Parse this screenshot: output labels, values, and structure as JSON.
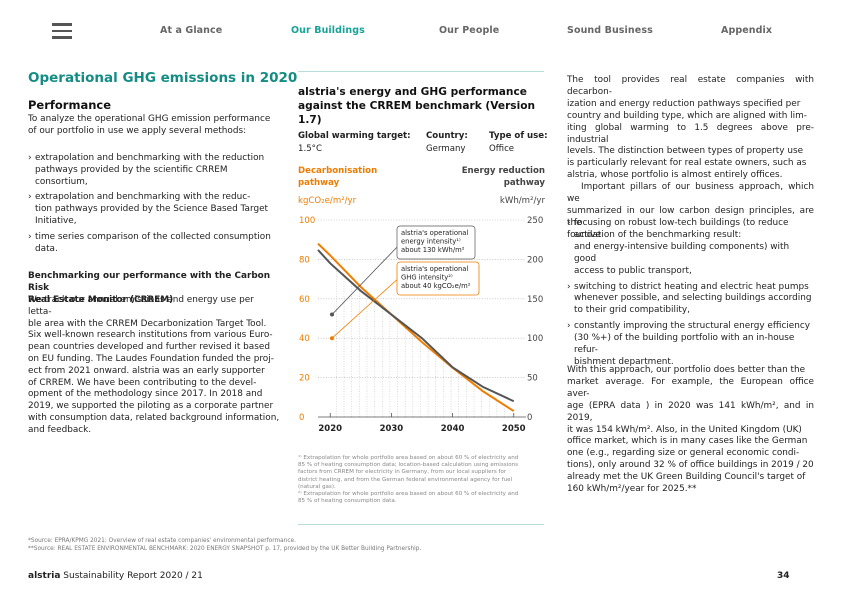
{
  "nav": {
    "items": [
      "At a Glance",
      "Our Buildings",
      "Our People",
      "Sound Business",
      "Appendix"
    ],
    "active": "Our Buildings"
  },
  "left": {
    "title": "Operational GHG emissions in 2020",
    "performance_heading": "Performance",
    "intro_lines": [
      "To analyze the operational GHG emission performance",
      "of our portfolio in use we apply several methods:"
    ],
    "bullets": [
      [
        "extrapolation and benchmarking with the reduction",
        "pathways provided by the scientific CRREM consortium,"
      ],
      [
        "extrapolation and benchmarking with the reduc-",
        "tion pathways provided by the Science Based Target",
        "Initiative,"
      ],
      [
        "time series comparison of the collected consumption",
        "data."
      ]
    ],
    "crrem_heading_lines": [
      "Benchmarking our performance with the Carbon Risk",
      "Real Estate Monitor (CRREM)"
    ],
    "crrem_lines": [
      "We track our annual emissions and energy use per letta-",
      "ble area with the CRREM Decarbonization Target Tool.",
      "Six well-known research institutions from various Euro-",
      "pean countries developed and further revised it based",
      "on EU funding. The Laudes Foundation funded the proj-",
      "ect from 2021 onward. alstria was an early supporter",
      "of CRREM. We have been contributing to the devel-",
      "opment of the methodology since 2017. In 2018 and",
      "2019, we supported the piloting as a corporate partner",
      "with consumption data, related background information,",
      "and feedback."
    ]
  },
  "chart": {
    "title_lines": [
      "alstria's energy and GHG performance",
      "against the CRREM benchmark (Version 1.7)"
    ],
    "gw_label": "Global warming target:",
    "gw_value": "1.5°C",
    "country_label": "Country:",
    "country_value": "Germany",
    "type_label": "Type of use:",
    "type_value": "Office",
    "left_axis_title_lines": [
      "Decarbonisation",
      "pathway"
    ],
    "right_axis_title_lines": [
      "Energy reduction",
      "pathway"
    ],
    "left_unit": "kgCO₂e/m²/yr",
    "right_unit": "kWh/m²/yr",
    "callout_energy_lines": [
      "alstria's operational",
      "energy intensity¹⁾",
      "about 130 kWh/m²"
    ],
    "callout_ghg_lines": [
      "alstria's operational",
      "GHG intensity²⁾",
      "about 40 kgCO₂e/m²"
    ],
    "footnotes": [
      "¹⁾ Extrapolation for whole portfolio area based on about 60 % of electricity and",
      "85 % of heating consumption data; location-based calculation using emissions",
      "factors from CRREM for electricity in Germany, from our local suppliers for",
      "district heating, and from the German federal environmental agency for fuel",
      "(natural gas).",
      "²⁾ Extrapolation for whole portfolio area based on about 60 % of electricity and",
      "85 % of heating consumption data."
    ]
  },
  "chart_data": {
    "type": "line",
    "title": "alstria's energy and GHG performance against the CRREM benchmark (Version 1.7)",
    "xlim": [
      2018,
      2052
    ],
    "x_ticks": [
      2020,
      2030,
      2040,
      2050
    ],
    "left_axis": {
      "label": "kgCO₂e/m²/yr",
      "ylim": [
        0,
        100
      ],
      "ticks": [
        0,
        20,
        40,
        60,
        80,
        100
      ]
    },
    "right_axis": {
      "label": "kWh/m²/yr",
      "ylim": [
        0,
        250
      ],
      "ticks": [
        0,
        50,
        100,
        150,
        200,
        250
      ]
    },
    "grid": "dotted horizontal",
    "series": [
      {
        "name": "Decarbonisation pathway",
        "axis": "left",
        "color": "#ef7d00",
        "x": [
          2018,
          2020,
          2025,
          2030,
          2035,
          2040,
          2045,
          2050
        ],
        "y": [
          88,
          82,
          66,
          52,
          38,
          25,
          13,
          3
        ]
      },
      {
        "name": "Energy reduction pathway",
        "axis": "right",
        "color": "#555555",
        "x": [
          2018,
          2020,
          2025,
          2030,
          2035,
          2040,
          2045,
          2050
        ],
        "y": [
          212,
          195,
          160,
          130,
          100,
          63,
          38,
          20
        ]
      }
    ],
    "points": [
      {
        "name": "alstria's operational energy intensity",
        "axis": "right",
        "x": 2018,
        "y": 130,
        "color": "#555555"
      },
      {
        "name": "alstria's operational GHG intensity",
        "axis": "left",
        "x": 2018,
        "y": 40,
        "color": "#ef7d00"
      }
    ]
  },
  "right": {
    "para1_lines": [
      "The tool provides real estate companies with decarbon-",
      "ization and energy reduction pathways specified per",
      "country and building type, which are aligned with lim-",
      "iting global warming to 1.5 degrees above pre-industrial",
      "levels. The distinction between types of property use",
      "is particularly relevant for real estate owners, such as",
      "alstria, whose portfolio is almost entirely offices.",
      "Important pillars of our business approach, which we",
      "summarized in our low carbon design principles, are the",
      "foundation of the benchmarking result:"
    ],
    "bullets": [
      [
        "focusing on robust low-tech buildings (to reduce active",
        "and energy-intensive building components) with good",
        "access to public transport,"
      ],
      [
        "switching to district heating and electric heat pumps",
        "whenever possible, and selecting buildings according",
        "to their grid compatibility,"
      ],
      [
        "constantly improving the structural energy efficiency",
        "(30 %+) of the building portfolio with an in-house refur-",
        "bishment department."
      ]
    ],
    "para2_lines": [
      "With this approach, our portfolio does better than the",
      "market average. For example, the European office aver-",
      "age (EPRA data ) in 2020 was 141 kWh/m², and in 2019,",
      "it was 154 kWh/m². Also, in the United Kingdom (UK)",
      "office market, which is in many cases like the German",
      "one (e.g., regarding size or general economic condi-",
      "tions), only around 32 % of office buildings in 2019 / 20",
      "already met the UK Green Building Council's target of",
      "160 kWh/m²/year for 2025.**"
    ]
  },
  "source_notes": [
    "*Source: EPRA/KPMG 2021: Overview of real estate companies' environmental performance.",
    "**Source: REAL ESTATE ENVIRONMENTAL BENCHMARK: 2020 ENERGY SNAPSHOT p. 17, provided by the UK Better Building Partnership."
  ],
  "footer": {
    "brand": "alstria",
    "text": " Sustainability Report 2020 / 21",
    "page": "34"
  },
  "colors": {
    "accent": "#17a398",
    "orange": "#ef7d00",
    "grey_line": "#555555"
  }
}
